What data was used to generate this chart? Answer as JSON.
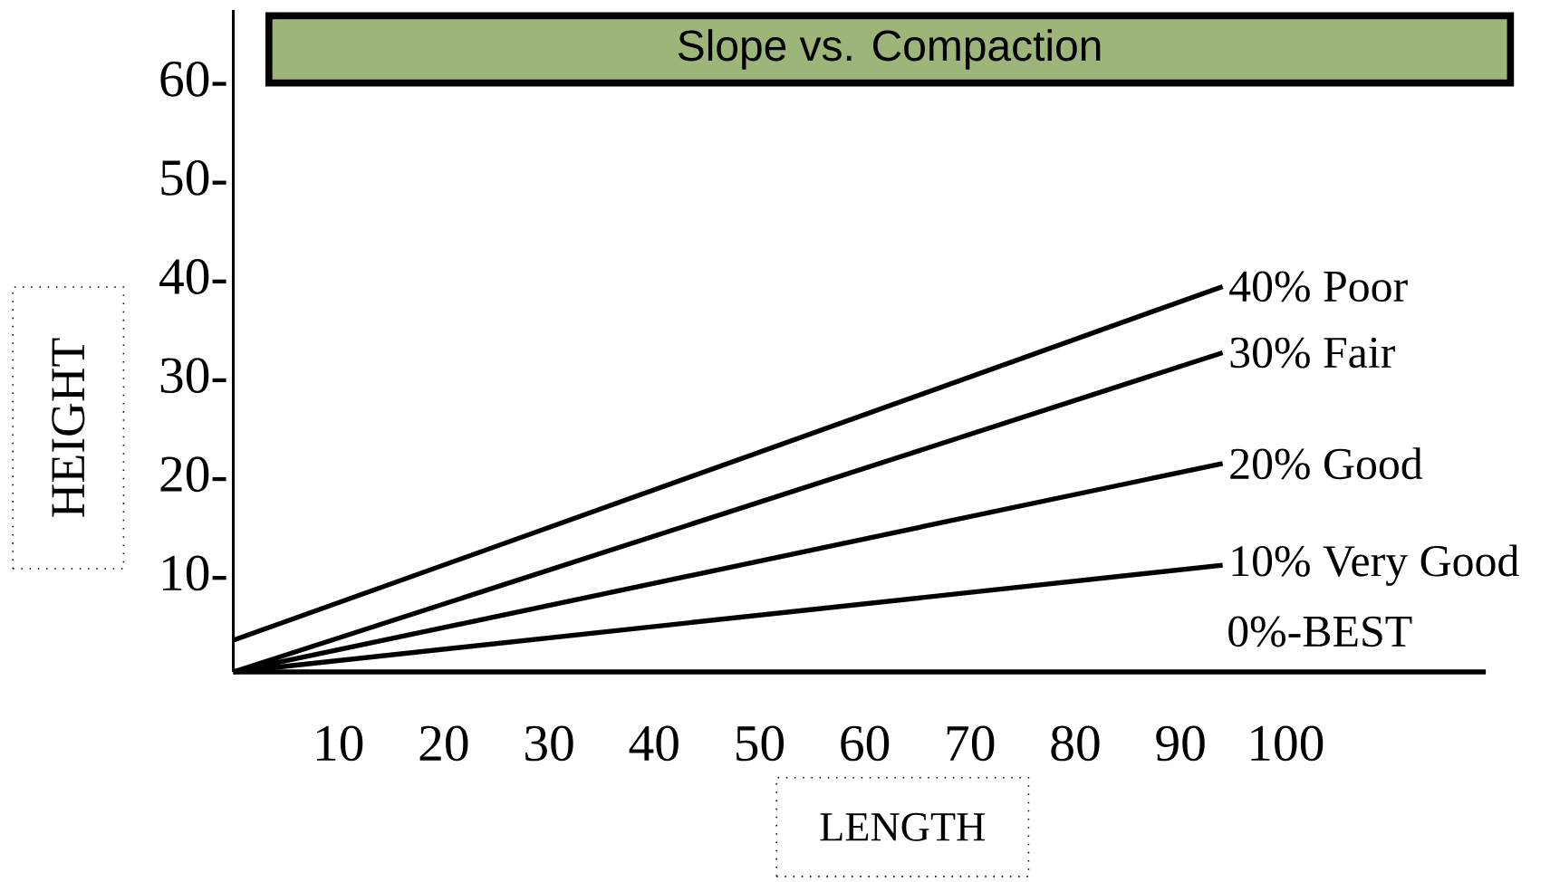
{
  "chart_data": {
    "type": "line",
    "title": "Slope vs. Compaction",
    "xlabel": "LENGTH",
    "ylabel": "HEIGHT",
    "x": [
      0,
      94
    ],
    "series": [
      {
        "name": "40% Poor",
        "color": "#000000",
        "values": [
          3.2,
          39
        ]
      },
      {
        "name": "30% Fair",
        "color": "#000000",
        "values": [
          0,
          32.3
        ]
      },
      {
        "name": "20% Good",
        "color": "#000000",
        "values": [
          0,
          21.1
        ]
      },
      {
        "name": "10% Very Good",
        "color": "#000000",
        "values": [
          0,
          10.8
        ]
      }
    ],
    "ref_lines": [
      {
        "axis": "y",
        "value": 0,
        "label": "0%-BEST",
        "color": "#000000"
      }
    ],
    "xlim": [
      0,
      119
    ],
    "ylim": [
      0,
      67
    ],
    "xticks": [
      10,
      20,
      30,
      40,
      50,
      60,
      70,
      80,
      90,
      100
    ],
    "yticks": [
      {
        "value": 10,
        "label": "10-"
      },
      {
        "value": 20,
        "label": "20-"
      },
      {
        "value": 30,
        "label": "30-"
      },
      {
        "value": 40,
        "label": "40-"
      },
      {
        "value": 50,
        "label": "50-"
      },
      {
        "value": 60,
        "label": "60-"
      }
    ]
  }
}
